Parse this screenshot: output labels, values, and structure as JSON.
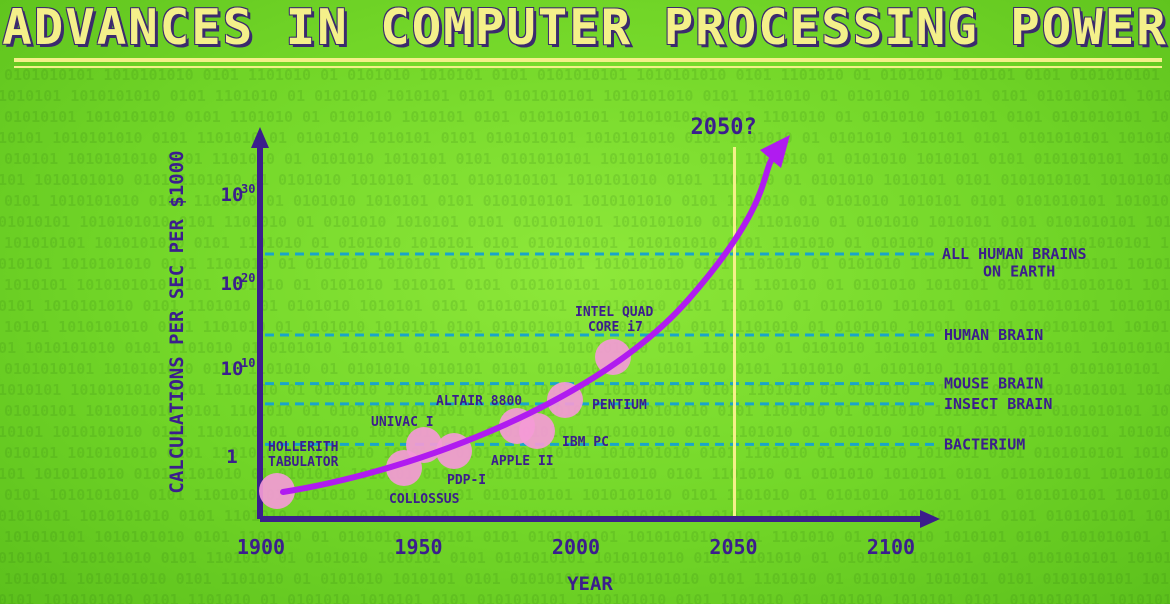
{
  "title": "ADVANCES IN COMPUTER PROCESSING POWER",
  "colors": {
    "axis": "#3b1e8c",
    "curve": "#b01bf0",
    "marker": "#f49ad6",
    "threshold": "#1aa5c9",
    "label": "#3b1e8c",
    "future": "#f4f08a",
    "title": "#f4f08a"
  },
  "chart_data": {
    "type": "line",
    "xlabel": "YEAR",
    "ylabel": "CALCULATIONS PER SEC PER $1000",
    "x_ticks": [
      "1900",
      "1950",
      "2000",
      "2050",
      "2100"
    ],
    "y_ticks": [
      {
        "base": "1",
        "exp": "",
        "value": 0
      },
      {
        "base": "10",
        "exp": "10",
        "value": 10
      },
      {
        "base": "10",
        "exp": "20",
        "value": 20
      },
      {
        "base": "10",
        "exp": "30",
        "value": 30
      }
    ],
    "y_scale": "log10",
    "xlim": [
      1900,
      2100
    ],
    "ylim": [
      -4,
      37
    ],
    "future_line": {
      "x": 2050,
      "label": "2050?"
    },
    "milestones": [
      {
        "name": "HOLLERITH\nTABULATOR",
        "year": 1906,
        "log_value": -3.2,
        "label_pos": "above"
      },
      {
        "name": "COLLOSSUS",
        "year": 1943,
        "log_value": -0.5,
        "label_pos": "below"
      },
      {
        "name": "UNIVAC I",
        "year": 1951,
        "log_value": 1.0,
        "label_pos": "above"
      },
      {
        "name": "PDP-I",
        "year": 1959,
        "log_value": 0.3,
        "label_pos": "below"
      },
      {
        "name": "APPLE II",
        "year": 1977,
        "log_value": 2.0,
        "label_pos": "below"
      },
      {
        "name": "ALTAIR 8800",
        "year": 1975,
        "log_value": 3.0,
        "label_pos": "above"
      },
      {
        "name": "IBM PC",
        "year": 1981,
        "log_value": 2.4,
        "label_pos": "right"
      },
      {
        "name": "PENTIUM",
        "year": 1993,
        "log_value": 5.0,
        "label_pos": "right"
      },
      {
        "name": "INTEL QUAD\nCORE i7",
        "year": 2010,
        "log_value": 10.5,
        "label_pos": "above"
      }
    ],
    "thresholds": [
      {
        "name": "ALL HUMAN BRAINS\nON EARTH",
        "log_value": 26
      },
      {
        "name": "HUMAN BRAIN",
        "log_value": 16
      },
      {
        "name": "MOUSE BRAIN",
        "log_value": 10
      },
      {
        "name": "INSECT BRAIN",
        "log_value": 7.5
      },
      {
        "name": "BACTERIUM",
        "log_value": 2.5
      }
    ],
    "trend_curve": [
      [
        1904,
        -3.8
      ],
      [
        1925,
        -2.8
      ],
      [
        1950,
        -0.8
      ],
      [
        1975,
        2.5
      ],
      [
        2000,
        7.5
      ],
      [
        2020,
        15.0
      ],
      [
        2040,
        26.0
      ],
      [
        2060,
        38.5
      ]
    ]
  }
}
